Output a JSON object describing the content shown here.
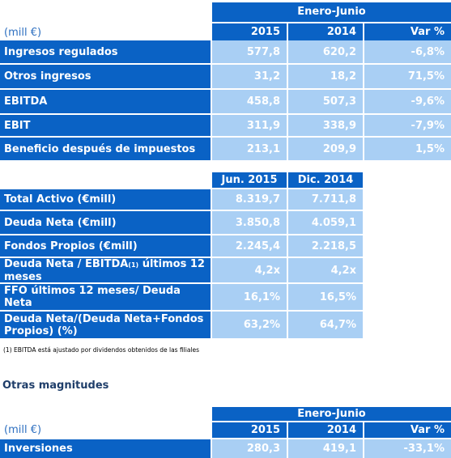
{
  "table1": {
    "period_header": "Enero-Junio",
    "unit": "(mill €)",
    "columns": [
      "2015",
      "2014",
      "Var %"
    ],
    "rows": [
      {
        "label": "Ingresos regulados",
        "values": [
          "577,8",
          "620,2",
          "-6,8%"
        ]
      },
      {
        "label": "Otros ingresos",
        "values": [
          "31,2",
          "18,2",
          "71,5%"
        ]
      },
      {
        "label": "EBITDA",
        "values": [
          "458,8",
          "507,3",
          "-9,6%"
        ]
      },
      {
        "label": "EBIT",
        "values": [
          "311,9",
          "338,9",
          "-7,9%"
        ]
      },
      {
        "label": "Beneficio después de impuestos",
        "values": [
          "213,1",
          "209,9",
          "1,5%"
        ]
      }
    ]
  },
  "table2": {
    "columns": [
      "Jun. 2015",
      "Dic. 2014"
    ],
    "rows": [
      {
        "label": "Total Activo (€mill)",
        "values": [
          "8.319,7",
          "7.711,8"
        ]
      },
      {
        "label": "Deuda Neta (€mill)",
        "values": [
          "3.850,8",
          "4.059,1"
        ]
      },
      {
        "label": "Fondos Propios (€mill)",
        "values": [
          "2.245,4",
          "2.218,5"
        ]
      },
      {
        "label_a": "Deuda Neta / EBITDA",
        "label_sup": "(1)",
        "label_b": " últimos 12 meses",
        "values": [
          "4,2x",
          "4,2x"
        ]
      },
      {
        "label": "FFO últimos 12 meses/ Deuda Neta",
        "values": [
          "16,1%",
          "16,5%"
        ]
      },
      {
        "label": "Deuda Neta/(Deuda Neta+Fondos Propios) (%)",
        "values": [
          "63,2%",
          "64,7%"
        ]
      }
    ]
  },
  "footnote": "(1)  EBITDA está ajustado por dividendos obtenidos de las filiales",
  "section_title": "Otras magnitudes",
  "table3": {
    "period_header": "Enero-Junio",
    "unit": "(mill €)",
    "columns": [
      "2015",
      "2014",
      "Var %"
    ],
    "rows": [
      {
        "label": "Inversiones",
        "values": [
          "280,3",
          "419,1",
          "-33,1%"
        ]
      }
    ]
  },
  "colors": {
    "header_blue": "#0a62c5",
    "value_light_blue": "#a9cff4"
  }
}
